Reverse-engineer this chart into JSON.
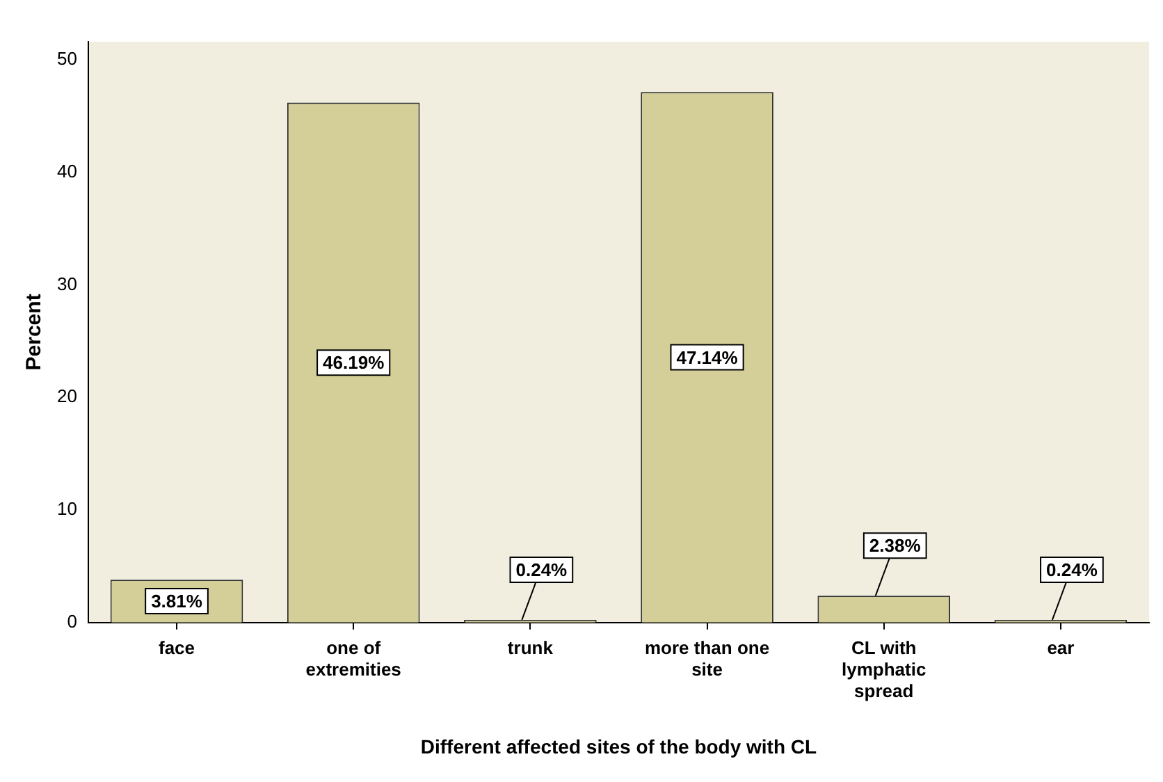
{
  "chart_data": {
    "type": "bar",
    "xlabel": "Different affected sites of the body with CL",
    "ylabel": "Percent",
    "categories": [
      "face",
      "one of extremities",
      "trunk",
      "more than one site",
      "CL with lymphatic spread",
      "ear"
    ],
    "values": [
      3.81,
      46.19,
      0.24,
      47.14,
      2.38,
      0.24
    ],
    "value_labels": [
      "3.81%",
      "46.19%",
      "0.24%",
      "47.14%",
      "2.38%",
      "0.24%"
    ],
    "color": "#d4cf98",
    "ylim": [
      0,
      51.6
    ],
    "yticks": [
      0,
      10,
      20,
      30,
      40,
      50
    ],
    "grid": false,
    "legend": false
  }
}
